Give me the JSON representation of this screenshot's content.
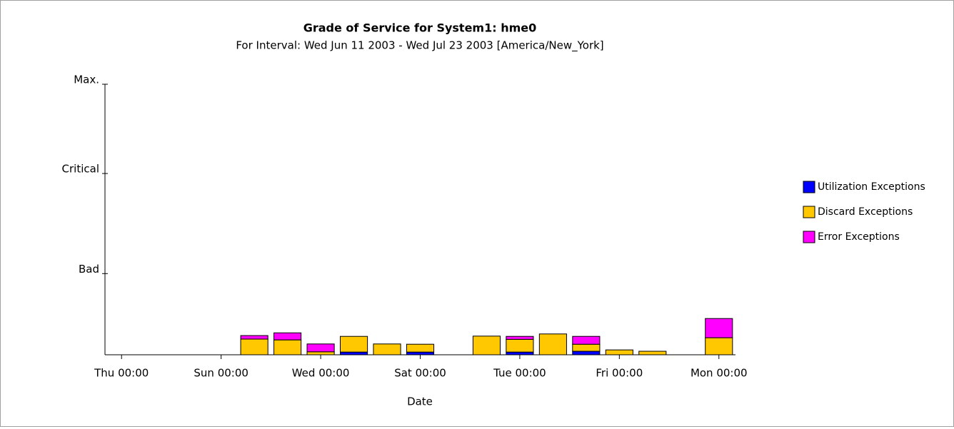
{
  "chart_data": {
    "type": "stacked_bar",
    "title": "Grade of Service for System1: hme0",
    "subtitle": "For Interval: Wed Jun 11 2003 - Wed Jul 23 2003 [America/New_York]",
    "x_label": "Date",
    "categories": [
      "Thu 00:00",
      null,
      null,
      "Sun 00:00",
      null,
      null,
      "Wed 00:00",
      null,
      null,
      "Sat 00:00",
      null,
      null,
      "Tue 00:00",
      null,
      null,
      "Fri 00:00",
      null,
      null,
      "Mon 00:00"
    ],
    "series": [
      {
        "name": "Utilization Exceptions",
        "color": "#0000ff",
        "values": [
          0,
          0,
          0,
          0,
          0,
          0,
          0,
          1,
          0,
          1,
          0,
          0,
          1,
          0,
          1.3,
          0,
          0,
          0,
          0
        ]
      },
      {
        "name": "Discard Exceptions",
        "color": "#ffc800",
        "values": [
          0,
          0,
          0,
          0,
          5.8,
          5.5,
          1.1,
          5.8,
          4.0,
          2.9,
          0,
          6.9,
          4.7,
          7.7,
          2.6,
          1.8,
          1.3,
          0,
          6.3
        ]
      },
      {
        "name": "Error Exceptions",
        "color": "#ff00ff",
        "values": [
          0,
          0,
          0,
          0,
          1.3,
          2.6,
          2.9,
          0,
          0,
          0,
          0,
          0,
          1.1,
          0,
          2.9,
          0,
          0,
          0,
          7.1
        ]
      }
    ],
    "ylim": [
      0,
      100
    ],
    "yticks": [
      {
        "value": 30,
        "label": "Bad"
      },
      {
        "value": 67,
        "label": "Critical"
      },
      {
        "value": 100,
        "label": "Max."
      }
    ],
    "legend": "right"
  }
}
